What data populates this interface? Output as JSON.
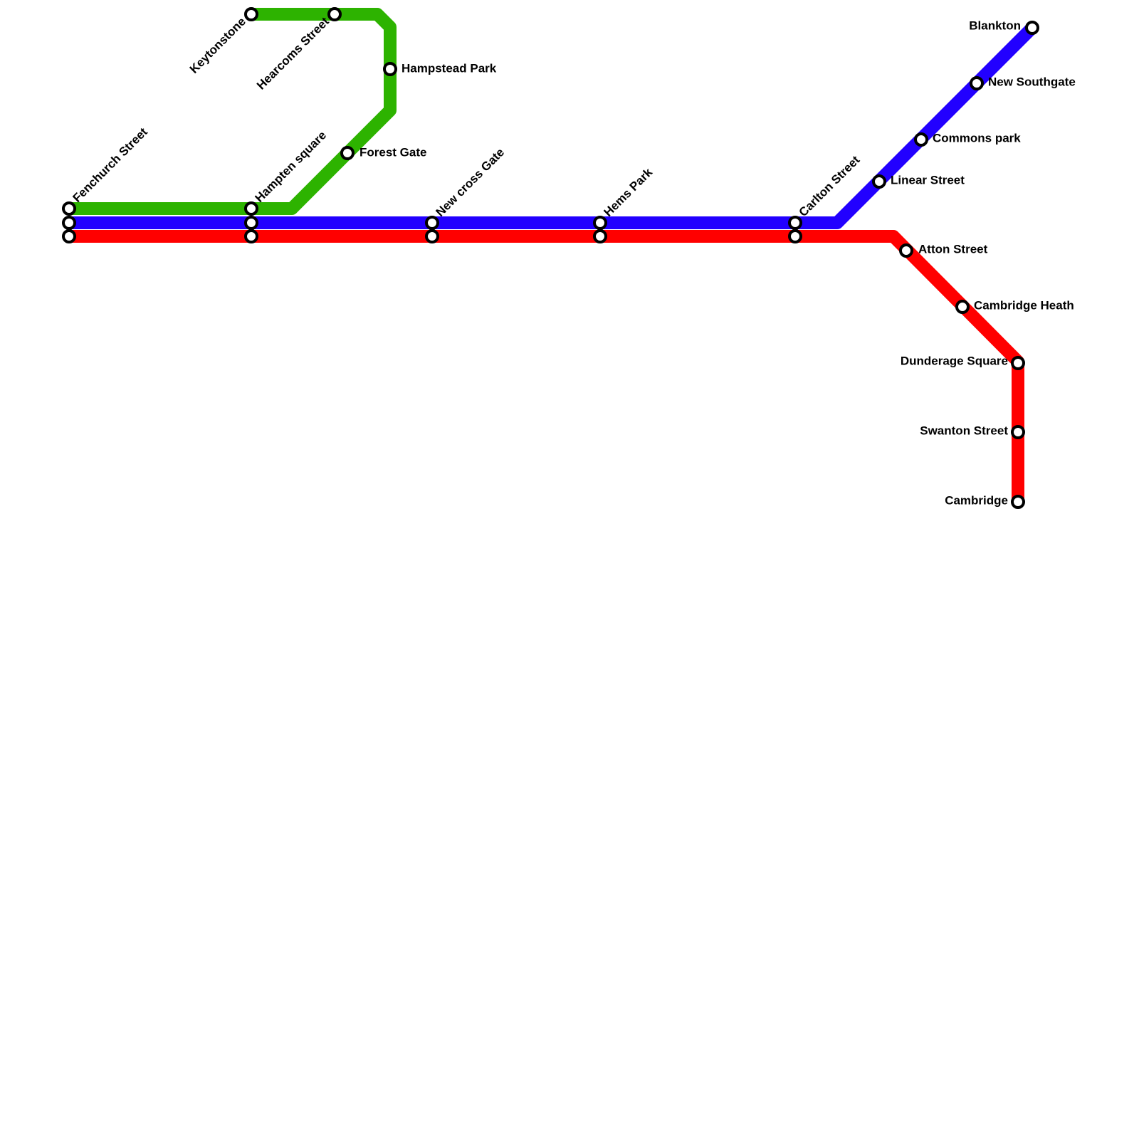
{
  "stations": [
    {
      "label": "Fenchurch Street"
    },
    {
      "label": "Keytonstone"
    },
    {
      "label": "Hearcoms Street"
    },
    {
      "label": "Hampstead Park"
    },
    {
      "label": "Hampten square"
    },
    {
      "label": "Forest Gate"
    },
    {
      "label": "New cross Gate"
    },
    {
      "label": "Hems Park"
    },
    {
      "label": "Carlton Street"
    },
    {
      "label": "Linear Street"
    },
    {
      "label": "Commons park"
    },
    {
      "label": "New Southgate"
    },
    {
      "label": "Blankton"
    },
    {
      "label": "Atton Street"
    },
    {
      "label": "Cambridge Heath"
    },
    {
      "label": "Dunderage Square"
    },
    {
      "label": "Swanton Street"
    },
    {
      "label": "Cambridge"
    }
  ]
}
